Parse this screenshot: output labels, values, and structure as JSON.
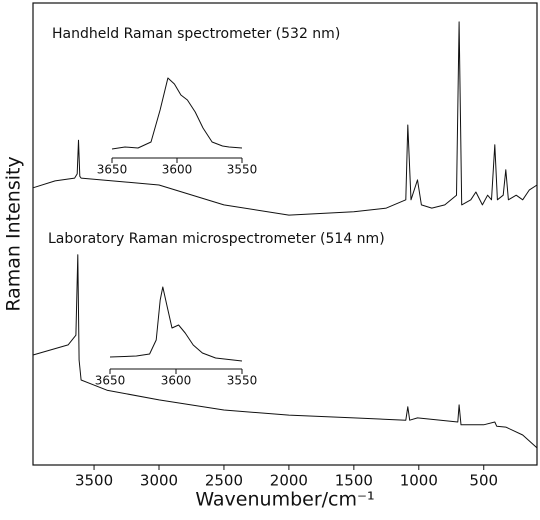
{
  "chart_data": [
    {
      "type": "line",
      "x_label": "Wavenumber/cm⁻¹",
      "y_label": "Raman Intensity",
      "xlim": [
        3970,
        90
      ],
      "xticks": [
        3500,
        3000,
        2500,
        2000,
        1500,
        1000,
        500
      ],
      "ylim": [
        0,
        100
      ],
      "series": [
        {
          "name": "Handheld Raman spectrometer (532 nm)",
          "color": "#111111",
          "x": [
            3970,
            3800,
            3650,
            3630,
            3620,
            3610,
            3600,
            3000,
            2500,
            2000,
            1500,
            1250,
            1100,
            1085,
            1060,
            1010,
            980,
            900,
            800,
            710,
            690,
            670,
            600,
            560,
            510,
            470,
            440,
            415,
            395,
            350,
            330,
            310,
            250,
            200,
            150,
            90
          ],
          "values": [
            60.0,
            61.5,
            62.1,
            63.0,
            70.3,
            62.5,
            62.1,
            60.6,
            56.3,
            54.1,
            54.8,
            55.6,
            57.4,
            73.6,
            57.4,
            61.7,
            56.3,
            55.6,
            56.3,
            58.4,
            95.9,
            56.3,
            57.4,
            59.1,
            56.3,
            58.4,
            57.4,
            69.3,
            57.4,
            58.4,
            63.9,
            57.4,
            58.4,
            57.4,
            59.5,
            60.6
          ]
        },
        {
          "name": "Laboratory Raman microspectrometer (514 nm)",
          "color": "#111111",
          "x": [
            3970,
            3700,
            3640,
            3625,
            3615,
            3600,
            3400,
            3000,
            2500,
            2000,
            1500,
            1100,
            1085,
            1070,
            1010,
            700,
            690,
            675,
            500,
            415,
            400,
            330,
            200,
            90
          ],
          "values": [
            23.8,
            26.0,
            28.1,
            45.5,
            22.7,
            18.4,
            16.2,
            14.1,
            11.9,
            10.8,
            10.2,
            9.7,
            12.6,
            9.7,
            10.2,
            9.3,
            13.0,
            8.7,
            8.7,
            9.3,
            8.4,
            8.2,
            6.5,
            3.7
          ]
        }
      ]
    },
    {
      "type": "line",
      "color": "#111111",
      "xlim": [
        3650,
        3550
      ],
      "xticks": [
        3650,
        3600,
        3550
      ],
      "ylim": [
        0,
        100
      ],
      "x": [
        3650,
        3640,
        3630,
        3620,
        3613,
        3607,
        3602,
        3597,
        3592,
        3586,
        3580,
        3573,
        3565,
        3560,
        3550
      ],
      "values": [
        10.2,
        12.5,
        11.4,
        18.2,
        54.5,
        90.9,
        84.1,
        71.6,
        65.9,
        52.3,
        34.1,
        18.2,
        13.6,
        12.5,
        11.4
      ]
    },
    {
      "type": "line",
      "color": "#111111",
      "xlim": [
        3650,
        3550
      ],
      "xticks": [
        3650,
        3600,
        3550
      ],
      "ylim": [
        0,
        100
      ],
      "x": [
        3650,
        3630,
        3620,
        3615,
        3612,
        3610,
        3607,
        3603,
        3598,
        3593,
        3587,
        3580,
        3570,
        3550
      ],
      "values": [
        14.3,
        15.5,
        17.9,
        34.5,
        82.1,
        97.6,
        76.2,
        48.8,
        52.4,
        42.9,
        28.6,
        19.0,
        13.1,
        9.5
      ]
    }
  ]
}
